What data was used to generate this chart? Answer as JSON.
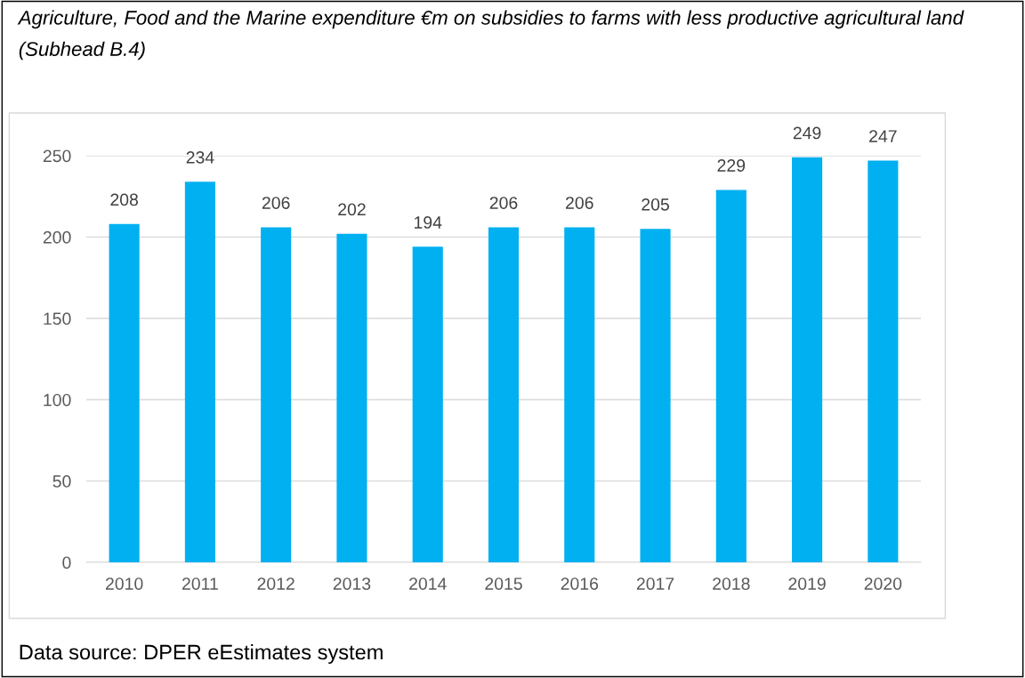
{
  "chart_data": {
    "type": "bar",
    "title": "Agriculture, Food and the Marine expenditure €m on subsidies to farms with less productive agricultural land (Subhead B.4)",
    "categories": [
      "2010",
      "2011",
      "2012",
      "2013",
      "2014",
      "2015",
      "2016",
      "2017",
      "2018",
      "2019",
      "2020"
    ],
    "values": [
      208,
      234,
      206,
      202,
      194,
      206,
      206,
      205,
      229,
      249,
      247
    ],
    "color": "#00b0f0",
    "ylim": [
      0,
      250
    ],
    "yticks": [
      0,
      50,
      100,
      150,
      200,
      250
    ],
    "grid": "y",
    "data_labels": true,
    "annotations": [
      "Data source: DPER eEstimates system"
    ]
  }
}
